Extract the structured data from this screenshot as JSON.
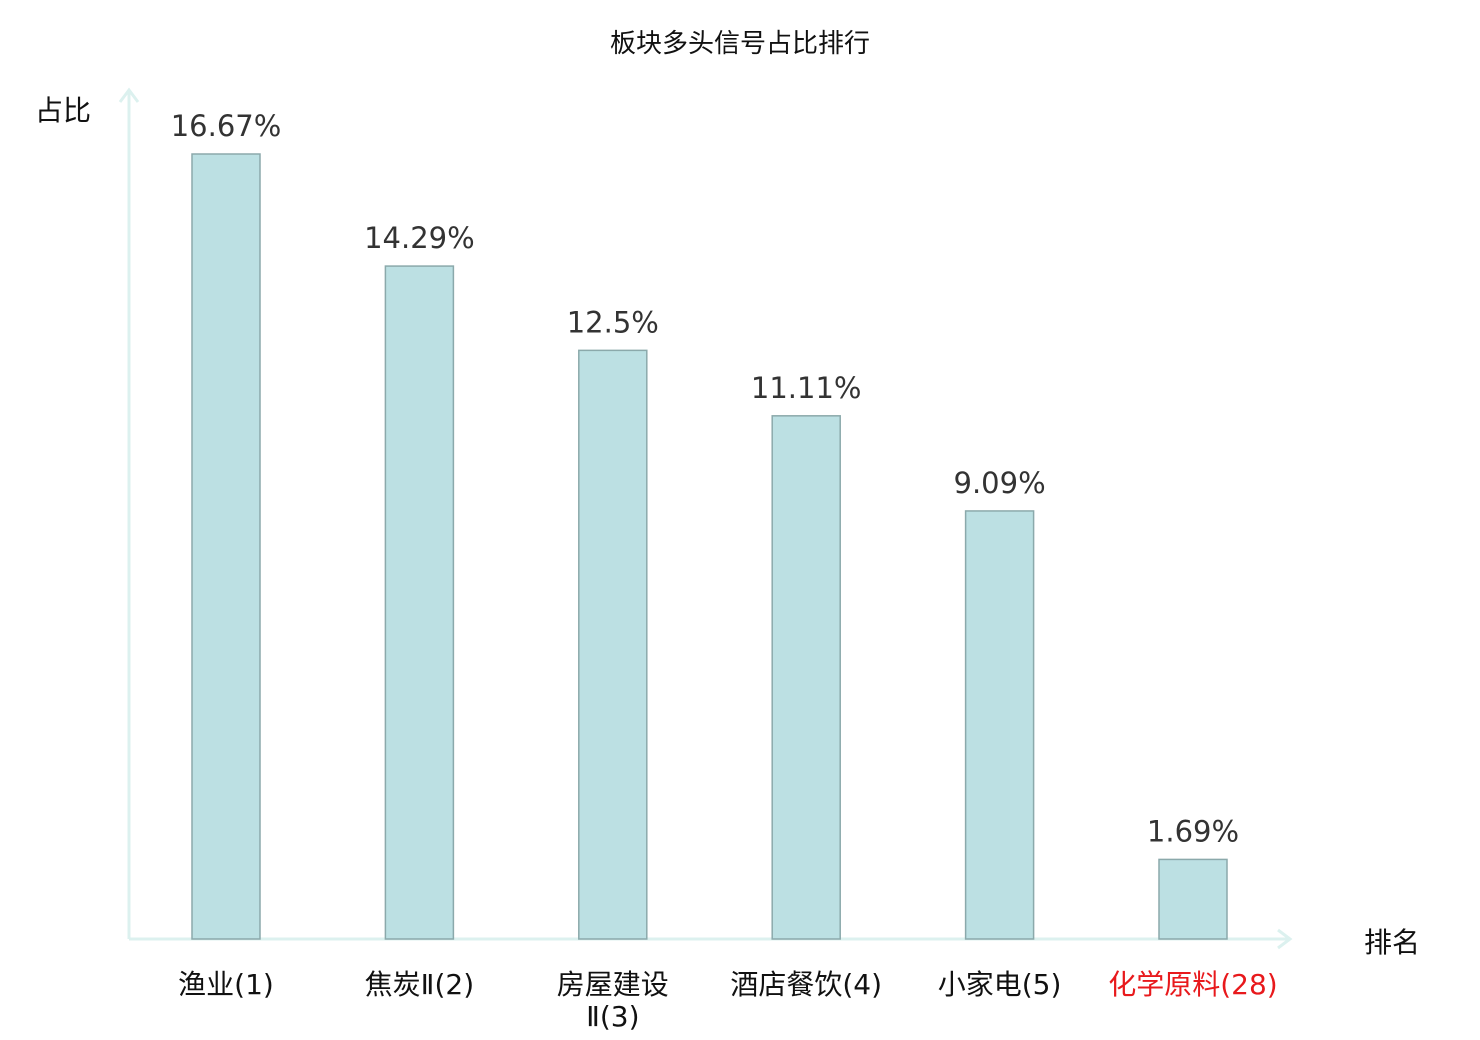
{
  "chart_data": {
    "type": "bar",
    "title": "板块多头信号占比排行",
    "xlabel": "排名",
    "ylabel": "占比",
    "categories": [
      "渔业(1)",
      "焦炭Ⅱ(2)",
      "房屋建设Ⅱ(3)",
      "酒店餐饮(4)",
      "小家电(5)",
      "化学原料(28)"
    ],
    "category_lines": [
      [
        "渔业(1)"
      ],
      [
        "焦炭Ⅱ(2)"
      ],
      [
        "房屋建设",
        "Ⅱ(3)"
      ],
      [
        "酒店餐饮(4)"
      ],
      [
        "小家电(5)"
      ],
      [
        "化学原料(28)"
      ]
    ],
    "values": [
      16.67,
      14.29,
      12.5,
      11.11,
      9.09,
      1.69
    ],
    "value_labels": [
      "16.67%",
      "14.29%",
      "12.5%",
      "11.11%",
      "9.09%",
      "1.69%"
    ],
    "highlighted": [
      false,
      false,
      false,
      false,
      false,
      true
    ],
    "ylim": [
      0,
      16.67
    ],
    "grid": false,
    "colors": {
      "bar_fill": "#bce0e3",
      "bar_stroke": "#8ba9ab",
      "axis": "#dcf1ef",
      "highlight": "#e8191c"
    }
  }
}
